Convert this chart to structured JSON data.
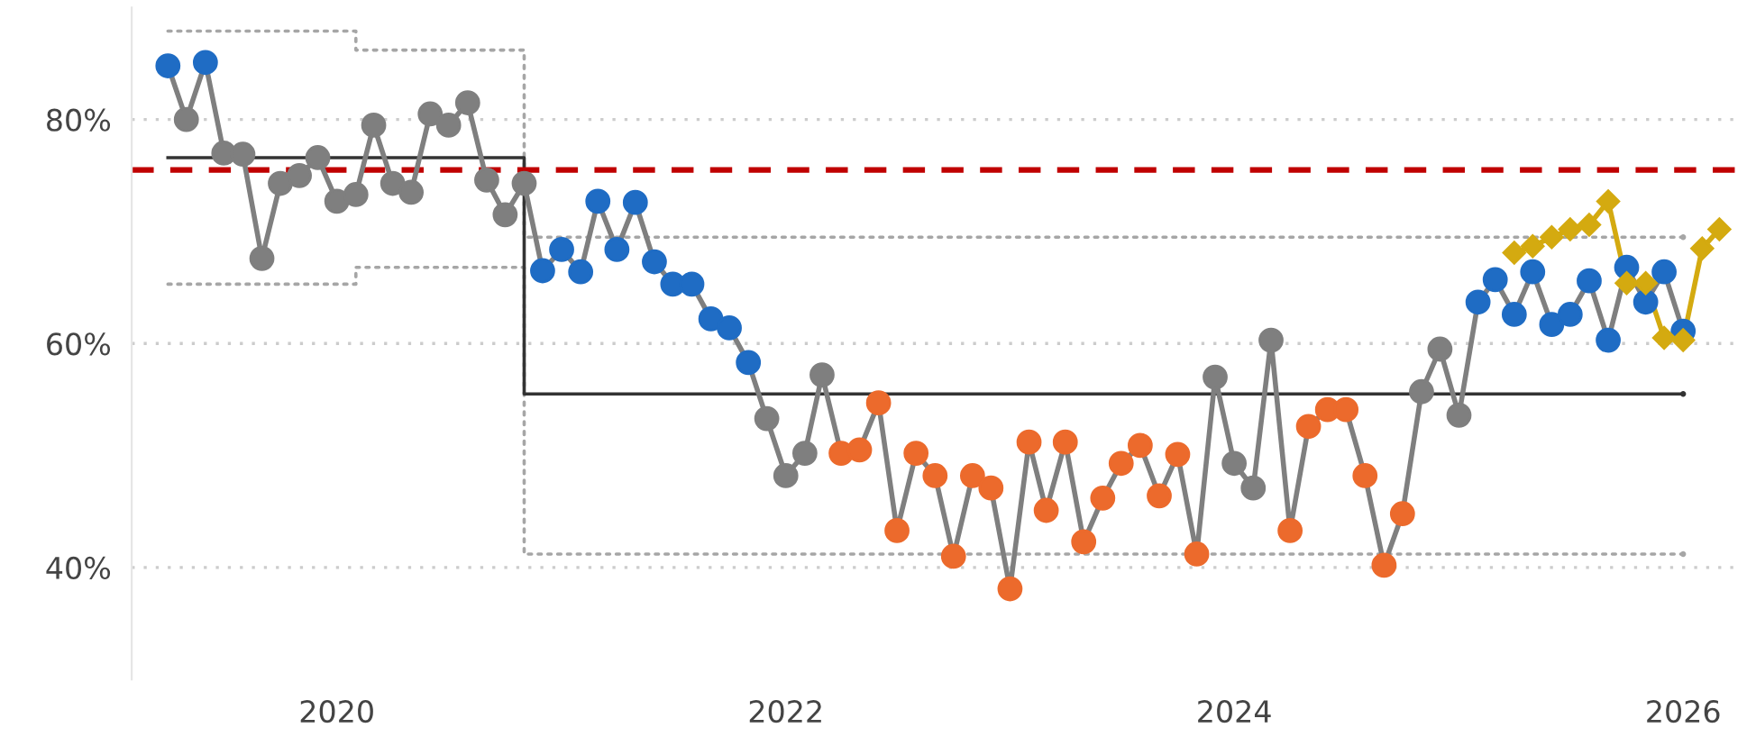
{
  "chart_data": {
    "type": "line",
    "x": [
      "2019-04",
      "2019-05",
      "2019-06",
      "2019-07",
      "2019-08",
      "2019-09",
      "2019-10",
      "2019-11",
      "2019-12",
      "2020-01",
      "2020-02",
      "2020-03",
      "2020-04",
      "2020-05",
      "2020-06",
      "2020-07",
      "2020-08",
      "2020-09",
      "2020-10",
      "2020-11",
      "2020-12",
      "2021-01",
      "2021-02",
      "2021-03",
      "2021-04",
      "2021-05",
      "2021-06",
      "2021-07",
      "2021-08",
      "2021-09",
      "2021-10",
      "2021-11",
      "2021-12",
      "2022-01",
      "2022-02",
      "2022-03",
      "2022-04",
      "2022-05",
      "2022-06",
      "2022-07",
      "2022-08",
      "2022-09",
      "2022-10",
      "2022-11",
      "2022-12",
      "2023-01",
      "2023-02",
      "2023-03",
      "2023-04",
      "2023-05",
      "2023-06",
      "2023-07",
      "2023-08",
      "2023-09",
      "2023-10",
      "2023-11",
      "2023-12",
      "2024-01",
      "2024-02",
      "2024-03",
      "2024-04",
      "2024-05",
      "2024-06",
      "2024-07",
      "2024-08",
      "2024-09",
      "2024-10",
      "2024-11",
      "2024-12",
      "2025-01",
      "2025-02",
      "2025-03",
      "2025-04",
      "2025-05",
      "2025-06",
      "2025-07",
      "2025-08",
      "2025-09",
      "2025-10",
      "2025-11",
      "2025-12",
      "2026-01"
    ],
    "series": [
      {
        "type": "step",
        "color": "#a6a6a6",
        "line_style": "dotted",
        "marker": "none",
        "x": [
          "2019-04",
          "2020-02",
          "2020-11",
          "2026-01"
        ],
        "values": [
          87.9,
          86.2,
          69.5,
          69.5
        ]
      },
      {
        "type": "step",
        "color": "#a6a6a6",
        "line_style": "dotted",
        "marker": "none",
        "x": [
          "2019-04",
          "2020-02",
          "2020-11",
          "2026-01"
        ],
        "values": [
          65.3,
          66.8,
          41.2,
          41.2
        ]
      },
      {
        "type": "step",
        "color": "#333333",
        "line_style": "solid",
        "marker": "none",
        "x": [
          "2019-04",
          "2020-11",
          "2026-01"
        ],
        "values": [
          76.6,
          55.5,
          55.5
        ]
      },
      {
        "color": "#7f7f7f",
        "line_style": "solid",
        "marker": "circle",
        "colors": [
          "#1f6cc4",
          "#7f7f7f",
          "#1f6cc4",
          "#7f7f7f",
          "#7f7f7f",
          "#7f7f7f",
          "#7f7f7f",
          "#7f7f7f",
          "#7f7f7f",
          "#7f7f7f",
          "#7f7f7f",
          "#7f7f7f",
          "#7f7f7f",
          "#7f7f7f",
          "#7f7f7f",
          "#7f7f7f",
          "#7f7f7f",
          "#7f7f7f",
          "#7f7f7f",
          "#7f7f7f",
          "#1f6cc4",
          "#1f6cc4",
          "#1f6cc4",
          "#1f6cc4",
          "#1f6cc4",
          "#1f6cc4",
          "#1f6cc4",
          "#1f6cc4",
          "#1f6cc4",
          "#1f6cc4",
          "#1f6cc4",
          "#1f6cc4",
          "#7f7f7f",
          "#7f7f7f",
          "#7f7f7f",
          "#7f7f7f",
          "#ec6a2c",
          "#ec6a2c",
          "#ec6a2c",
          "#ec6a2c",
          "#ec6a2c",
          "#ec6a2c",
          "#ec6a2c",
          "#ec6a2c",
          "#ec6a2c",
          "#ec6a2c",
          "#ec6a2c",
          "#ec6a2c",
          "#ec6a2c",
          "#ec6a2c",
          "#ec6a2c",
          "#ec6a2c",
          "#ec6a2c",
          "#ec6a2c",
          "#ec6a2c",
          "#ec6a2c",
          "#7f7f7f",
          "#7f7f7f",
          "#7f7f7f",
          "#7f7f7f",
          "#ec6a2c",
          "#ec6a2c",
          "#ec6a2c",
          "#ec6a2c",
          "#ec6a2c",
          "#ec6a2c",
          "#ec6a2c",
          "#7f7f7f",
          "#7f7f7f",
          "#7f7f7f",
          "#1f6cc4",
          "#1f6cc4",
          "#1f6cc4",
          "#1f6cc4",
          "#1f6cc4",
          "#1f6cc4",
          "#1f6cc4",
          "#1f6cc4",
          "#1f6cc4",
          "#1f6cc4",
          "#1f6cc4",
          "#1f6cc4"
        ],
        "values": [
          84.8,
          80.0,
          85.1,
          77.0,
          76.9,
          67.6,
          74.3,
          75.0,
          76.6,
          72.7,
          73.3,
          79.5,
          74.3,
          73.5,
          80.5,
          79.5,
          81.5,
          74.6,
          71.5,
          74.3,
          66.5,
          68.4,
          66.4,
          72.7,
          68.4,
          72.6,
          67.3,
          65.3,
          65.3,
          62.2,
          61.4,
          58.3,
          53.3,
          48.2,
          50.2,
          57.2,
          50.2,
          50.5,
          54.7,
          43.3,
          50.2,
          48.2,
          41.0,
          48.2,
          47.1,
          38.1,
          51.2,
          45.1,
          51.2,
          42.3,
          46.2,
          49.3,
          50.9,
          46.4,
          50.1,
          41.2,
          57.0,
          49.3,
          47.1,
          60.3,
          43.3,
          52.6,
          54.1,
          54.1,
          48.2,
          40.2,
          44.8,
          55.7,
          59.5,
          53.6,
          63.7,
          65.7,
          62.6,
          66.4,
          61.7,
          62.6,
          65.6,
          60.3,
          66.8,
          63.7,
          66.4,
          61.1
        ]
      },
      {
        "color": "#d4aa10",
        "line_style": "solid",
        "marker": "diamond",
        "x": [
          "2025-04",
          "2025-05",
          "2025-06",
          "2025-07",
          "2025-08",
          "2025-09",
          "2025-10",
          "2025-11",
          "2025-12",
          "2026-01",
          "2026-02",
          "2026-03"
        ],
        "values": [
          68.1,
          68.7,
          69.5,
          70.2,
          70.6,
          72.7,
          65.4,
          65.4,
          60.5,
          60.3,
          68.5,
          70.2
        ]
      }
    ],
    "ref_lines": [
      {
        "axis": "y",
        "value": 75.5,
        "color": "#c00000",
        "line_style": "dashed"
      }
    ],
    "xlim": [
      "2019-02",
      "2026-04"
    ],
    "xticks": [
      "2020",
      "2022",
      "2024",
      "2026"
    ],
    "ylim": [
      30,
      90
    ],
    "yticks": [
      {
        "value": 40,
        "label": "40%"
      },
      {
        "value": 60,
        "label": "60%"
      },
      {
        "value": 80,
        "label": "80%"
      }
    ],
    "grid": "y",
    "legend": false
  }
}
